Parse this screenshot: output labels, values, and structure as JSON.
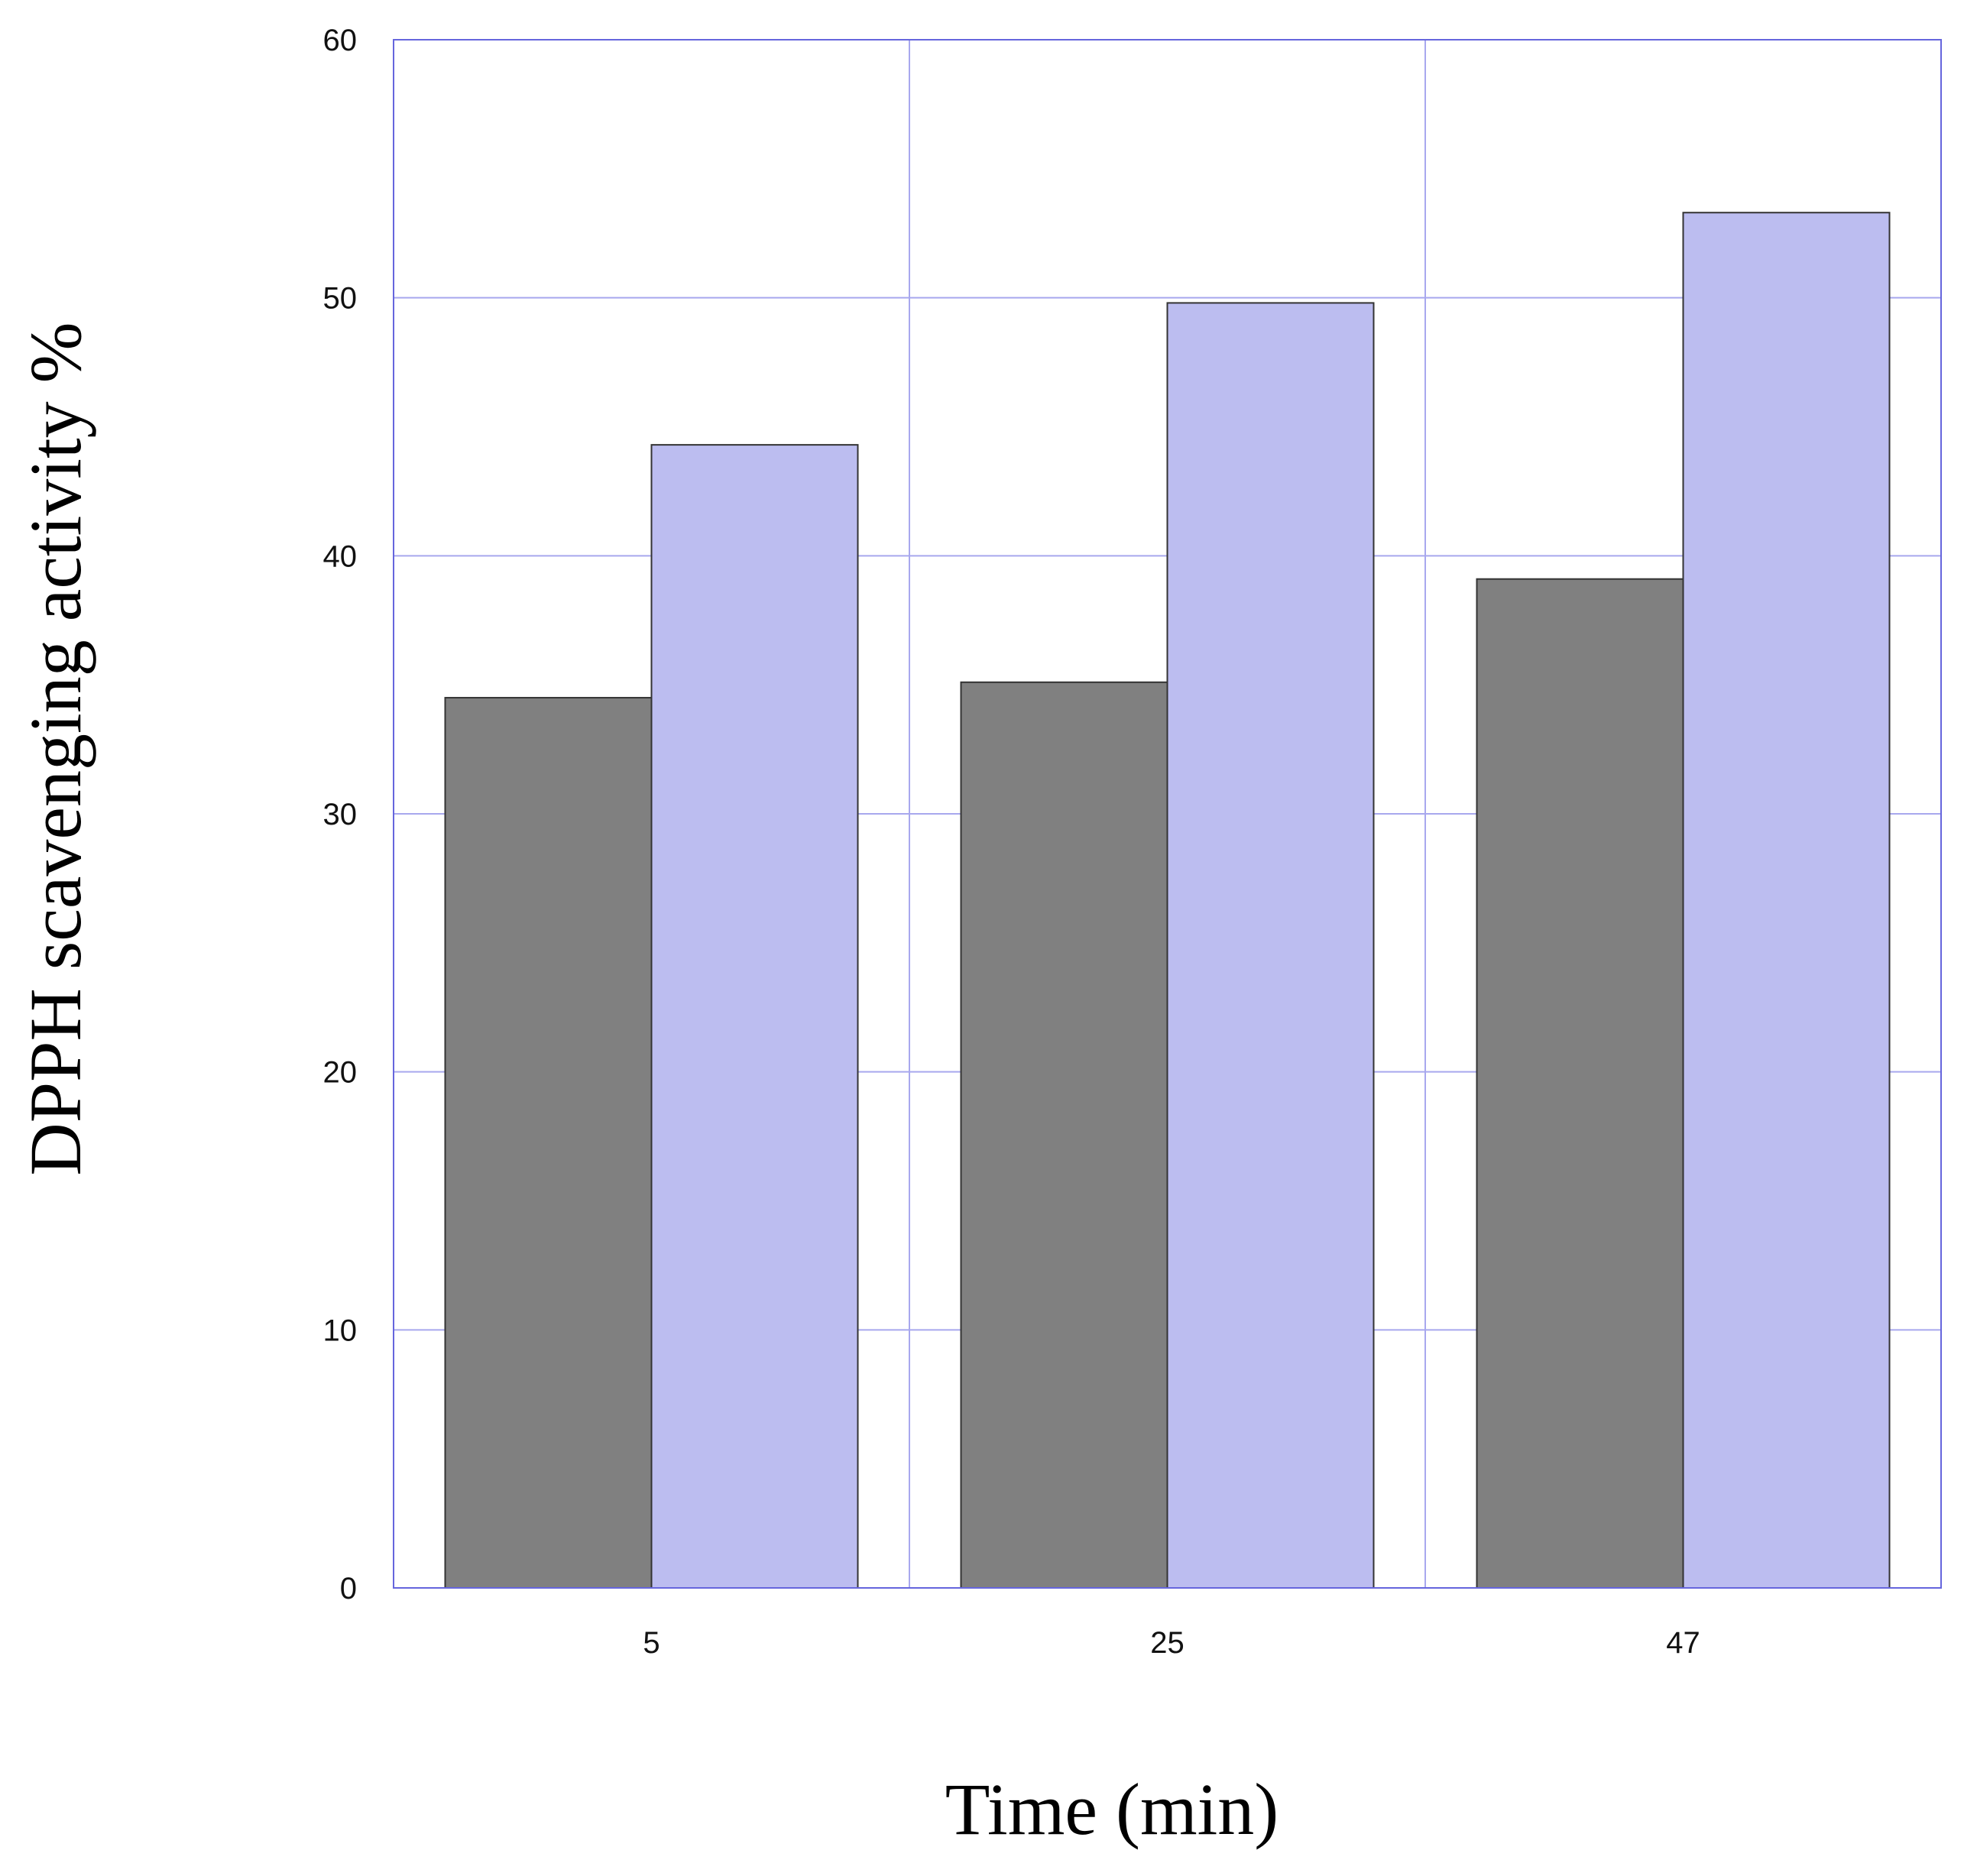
{
  "chart_data": {
    "type": "bar",
    "title": "",
    "xlabel": "Time (min)",
    "ylabel": "DPPH scavenging activity %",
    "categories": [
      "5",
      "25",
      "47"
    ],
    "ylim": [
      0,
      60
    ],
    "yticks": [
      0,
      10,
      20,
      30,
      40,
      50,
      60
    ],
    "grid": true,
    "legend": "none",
    "series": [
      {
        "values": [
          34.5,
          35.1,
          39.1
        ],
        "color": "#808080"
      },
      {
        "values": [
          44.3,
          49.8,
          53.3
        ],
        "color": "#bcbdf0"
      }
    ]
  },
  "colors": {
    "grid": "#a8a8ee",
    "frame": "#6666dd",
    "bar_edge": "#333333",
    "text": "#111111"
  }
}
